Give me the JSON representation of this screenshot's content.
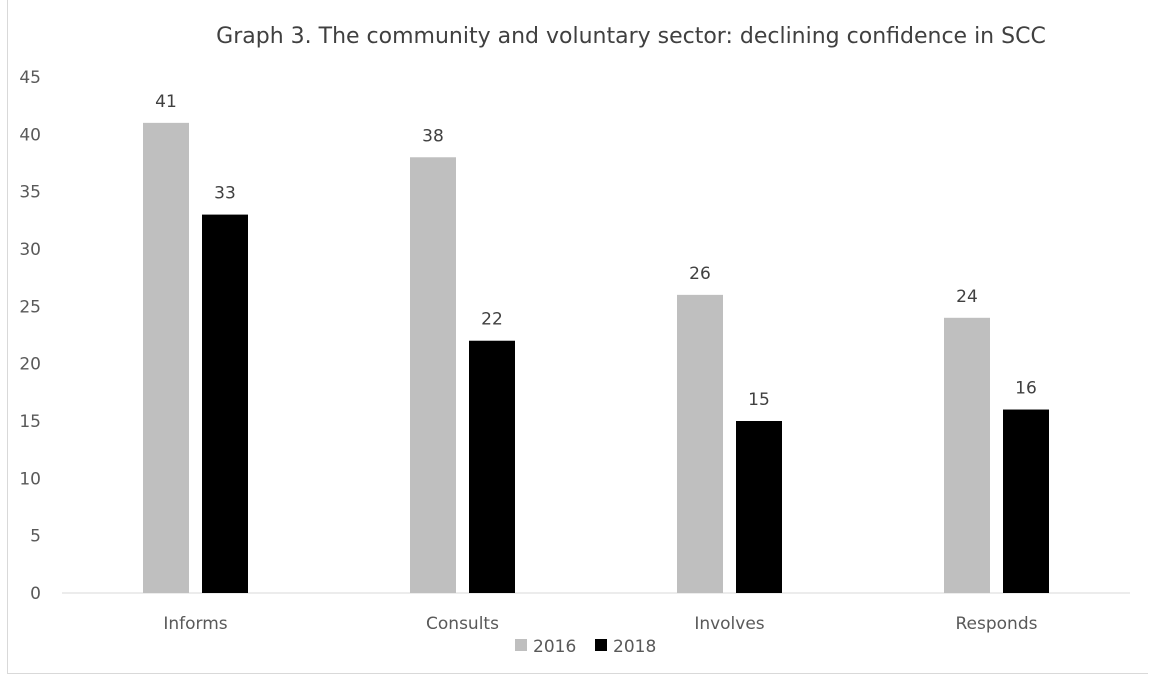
{
  "chart_data": {
    "type": "bar",
    "title": "Graph 3. The community and voluntary sector: declining confidence in SCC",
    "categories": [
      "Informs",
      "Consults",
      "Involves",
      "Responds"
    ],
    "series": [
      {
        "name": "2016",
        "values": [
          41,
          38,
          26,
          24
        ],
        "color": "#bfbfbf"
      },
      {
        "name": "2018",
        "values": [
          33,
          22,
          15,
          16
        ],
        "color": "#000000"
      }
    ],
    "ylim": [
      0,
      45
    ],
    "yticks": [
      0,
      5,
      10,
      15,
      20,
      25,
      30,
      35,
      40,
      45
    ],
    "grid": false,
    "legend_position": "bottom",
    "data_labels": true
  }
}
